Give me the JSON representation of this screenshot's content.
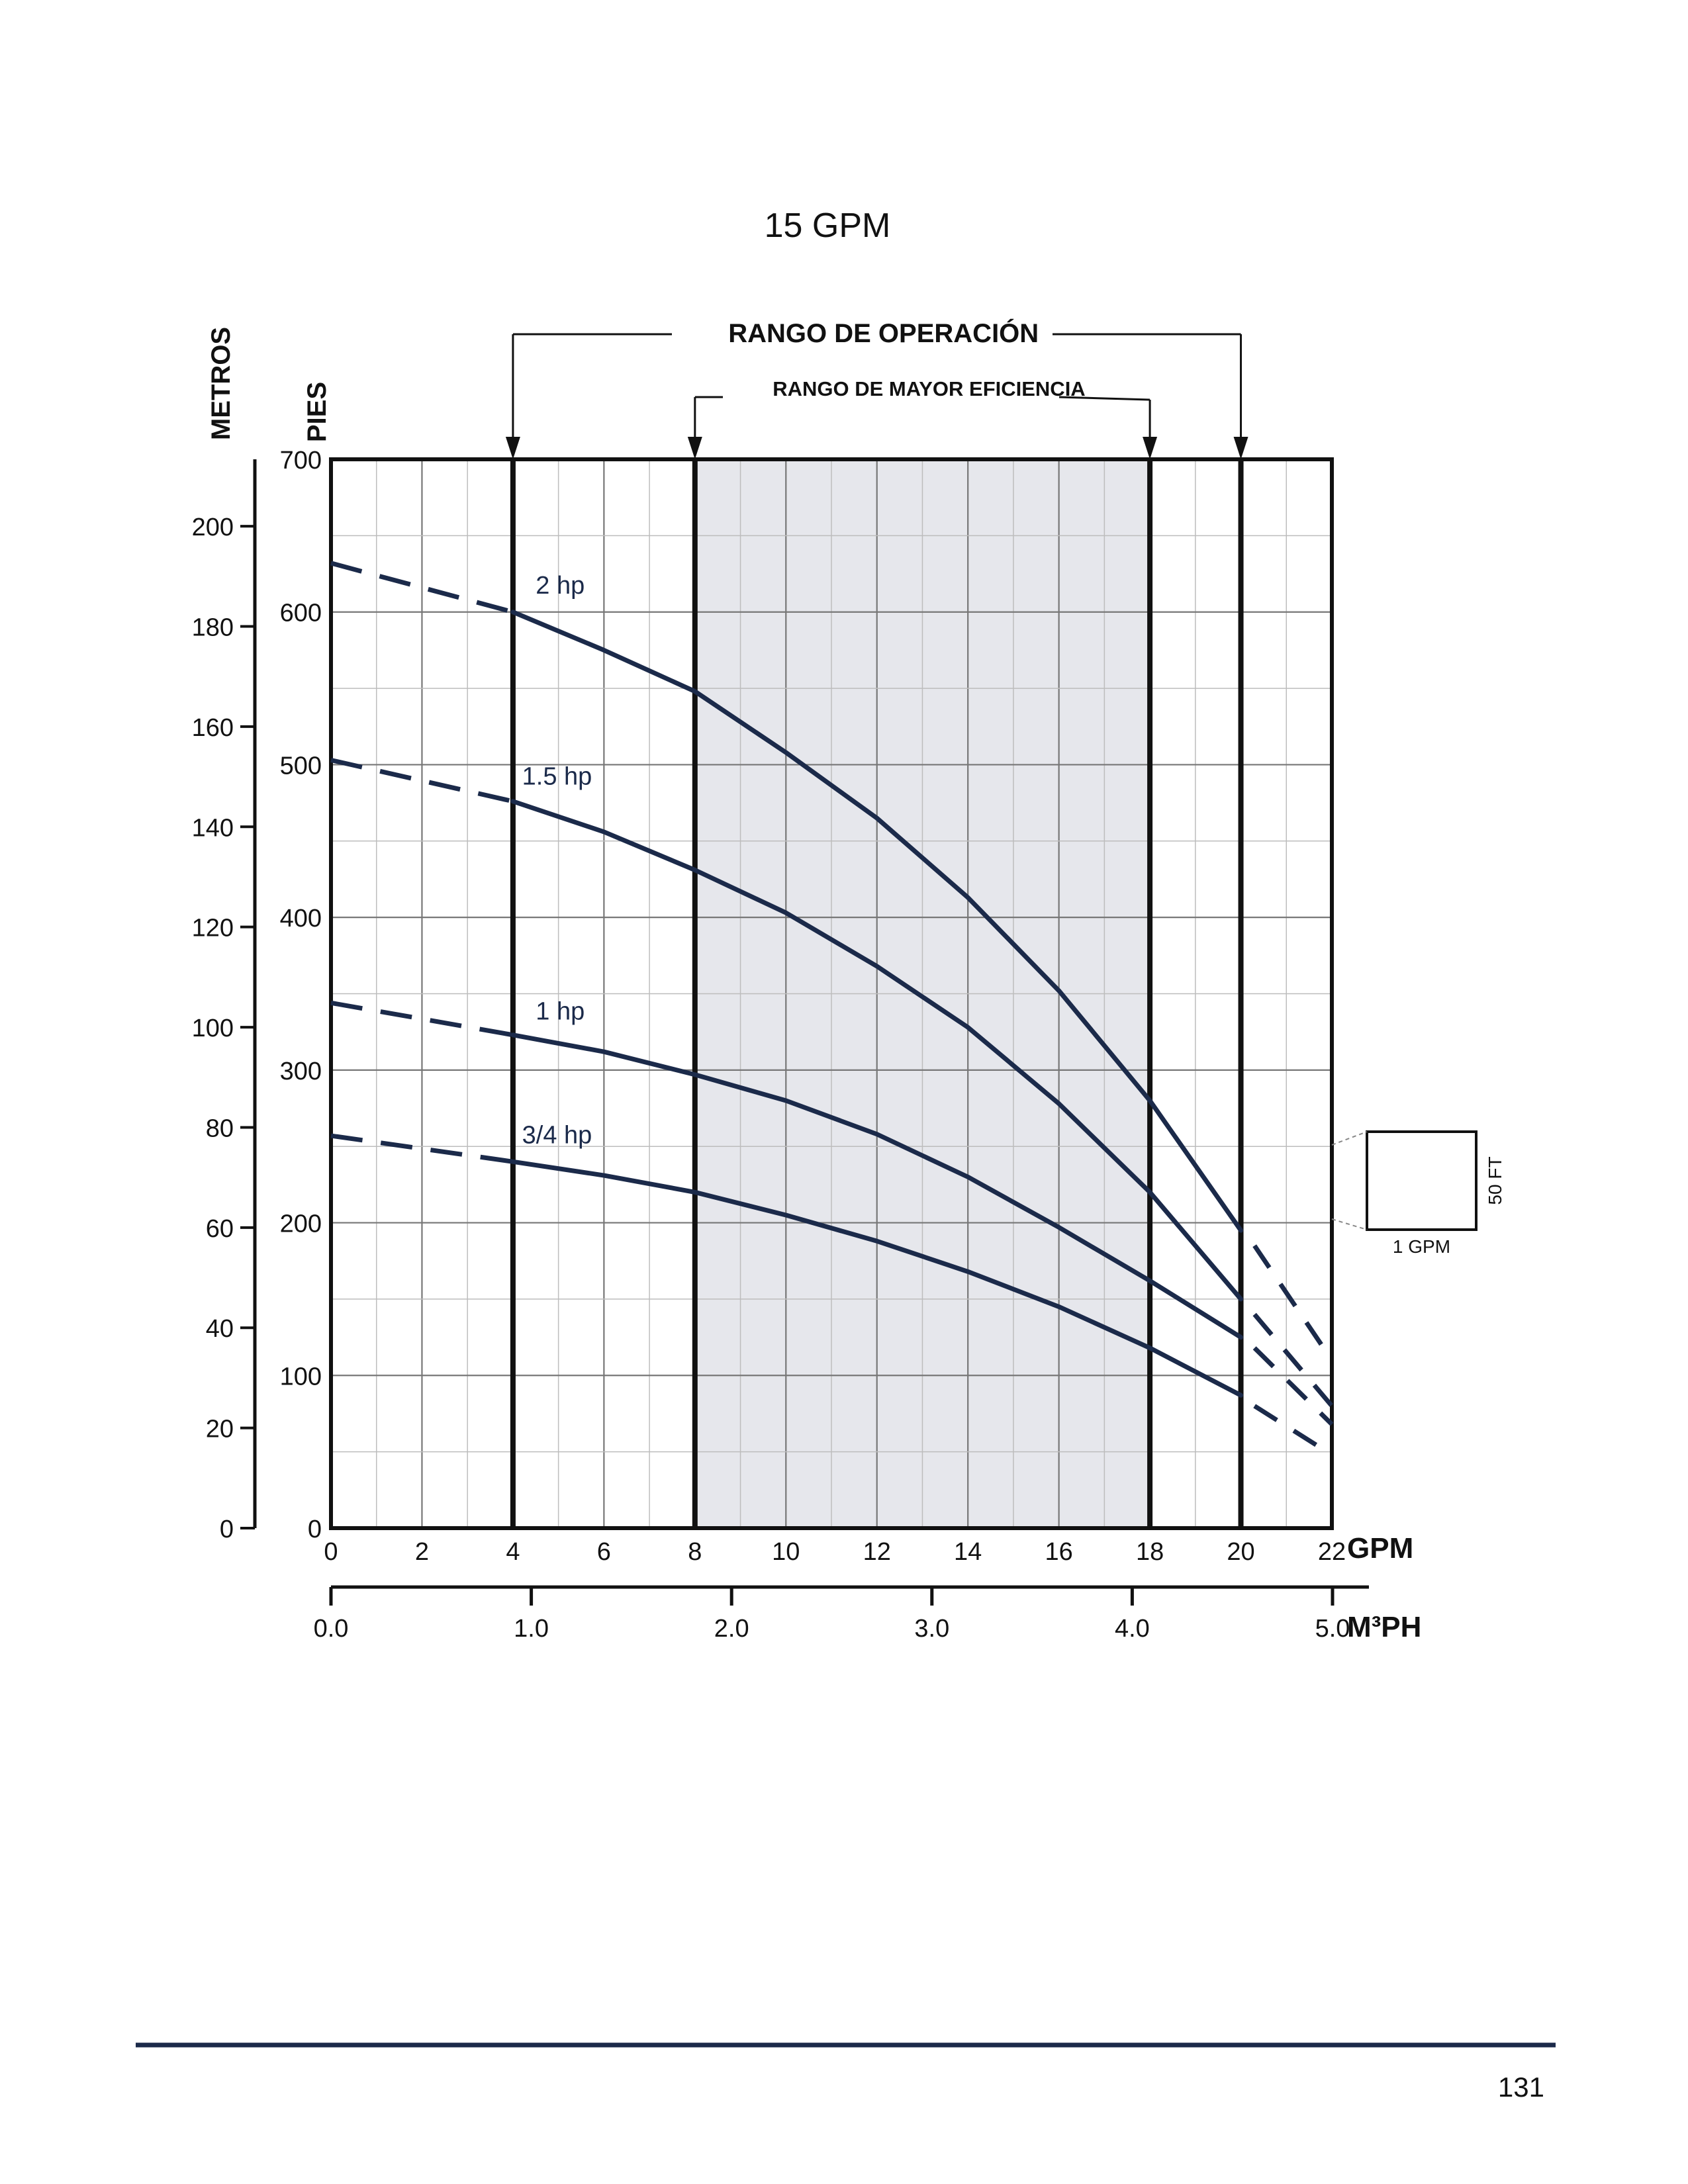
{
  "page": {
    "title": "15 GPM",
    "page_number": "131",
    "colors": {
      "curve": "#1b2a4a",
      "shade": "#e6e7ec",
      "rule": "#1b2a4a"
    }
  },
  "chart_data": {
    "type": "line",
    "title": "15 GPM",
    "xlabel": "GPM",
    "x2label": "M³PH",
    "ylabel_left": "METROS",
    "ylabel_right": "PIES",
    "xlim": [
      0,
      22
    ],
    "ylim": [
      0,
      700
    ],
    "metros_lim": [
      0,
      213.36
    ],
    "x_ticks": [
      "0",
      "2",
      "4",
      "6",
      "8",
      "10",
      "12",
      "14",
      "16",
      "18",
      "20",
      "22"
    ],
    "y_ticks": [
      "0",
      "100",
      "200",
      "300",
      "400",
      "500",
      "600",
      "700"
    ],
    "metros_ticks": [
      "0",
      "20",
      "40",
      "60",
      "80",
      "100",
      "120",
      "140",
      "160",
      "180",
      "200"
    ],
    "m3ph_ticks": [
      "0.0",
      "1.0",
      "2.0",
      "3.0",
      "4.0",
      "5.0"
    ],
    "grid": true,
    "operating_range": {
      "label": "RANGO DE OPERACIÓN",
      "from": 4,
      "to": 20
    },
    "efficiency_range": {
      "label": "RANGO DE MAYOR EFICIENCIA",
      "from": 8,
      "to": 18
    },
    "scale_box": {
      "x_label": "1 GPM",
      "y_label": "50 FT"
    },
    "series": [
      {
        "name": "2 hp",
        "x": [
          4,
          6,
          8,
          10,
          12,
          14,
          16,
          18,
          20
        ],
        "y": [
          600,
          575,
          548,
          508,
          465,
          413,
          352,
          280,
          195
        ],
        "dashed_start": {
          "x": [
            0,
            4
          ],
          "y": [
            632,
            600
          ]
        },
        "dashed_end": {
          "x": [
            20.3,
            22
          ],
          "y": [
            185,
            110
          ]
        }
      },
      {
        "name": "1.5 hp",
        "x": [
          4,
          6,
          8,
          10,
          12,
          14,
          16,
          18,
          20
        ],
        "y": [
          476,
          456,
          431,
          403,
          368,
          328,
          278,
          220,
          150
        ],
        "dashed_start": {
          "x": [
            0,
            4
          ],
          "y": [
            503,
            476
          ]
        },
        "dashed_end": {
          "x": [
            20.3,
            22
          ],
          "y": [
            140,
            80
          ]
        }
      },
      {
        "name": "1 hp",
        "x": [
          4,
          6,
          8,
          10,
          12,
          14,
          16,
          18,
          20
        ],
        "y": [
          323,
          312,
          297,
          280,
          258,
          230,
          197,
          162,
          125
        ],
        "dashed_start": {
          "x": [
            0,
            4
          ],
          "y": [
            344,
            323
          ]
        },
        "dashed_end": {
          "x": [
            20.3,
            22
          ],
          "y": [
            118,
            68
          ]
        }
      },
      {
        "name": "3/4 hp",
        "x": [
          4,
          6,
          8,
          10,
          12,
          14,
          16,
          18,
          20
        ],
        "y": [
          240,
          231,
          220,
          205,
          188,
          168,
          145,
          118,
          87
        ],
        "dashed_start": {
          "x": [
            0,
            4
          ],
          "y": [
            257,
            240
          ]
        },
        "dashed_end": {
          "x": [
            20.3,
            22
          ],
          "y": [
            80,
            48
          ]
        }
      }
    ]
  }
}
